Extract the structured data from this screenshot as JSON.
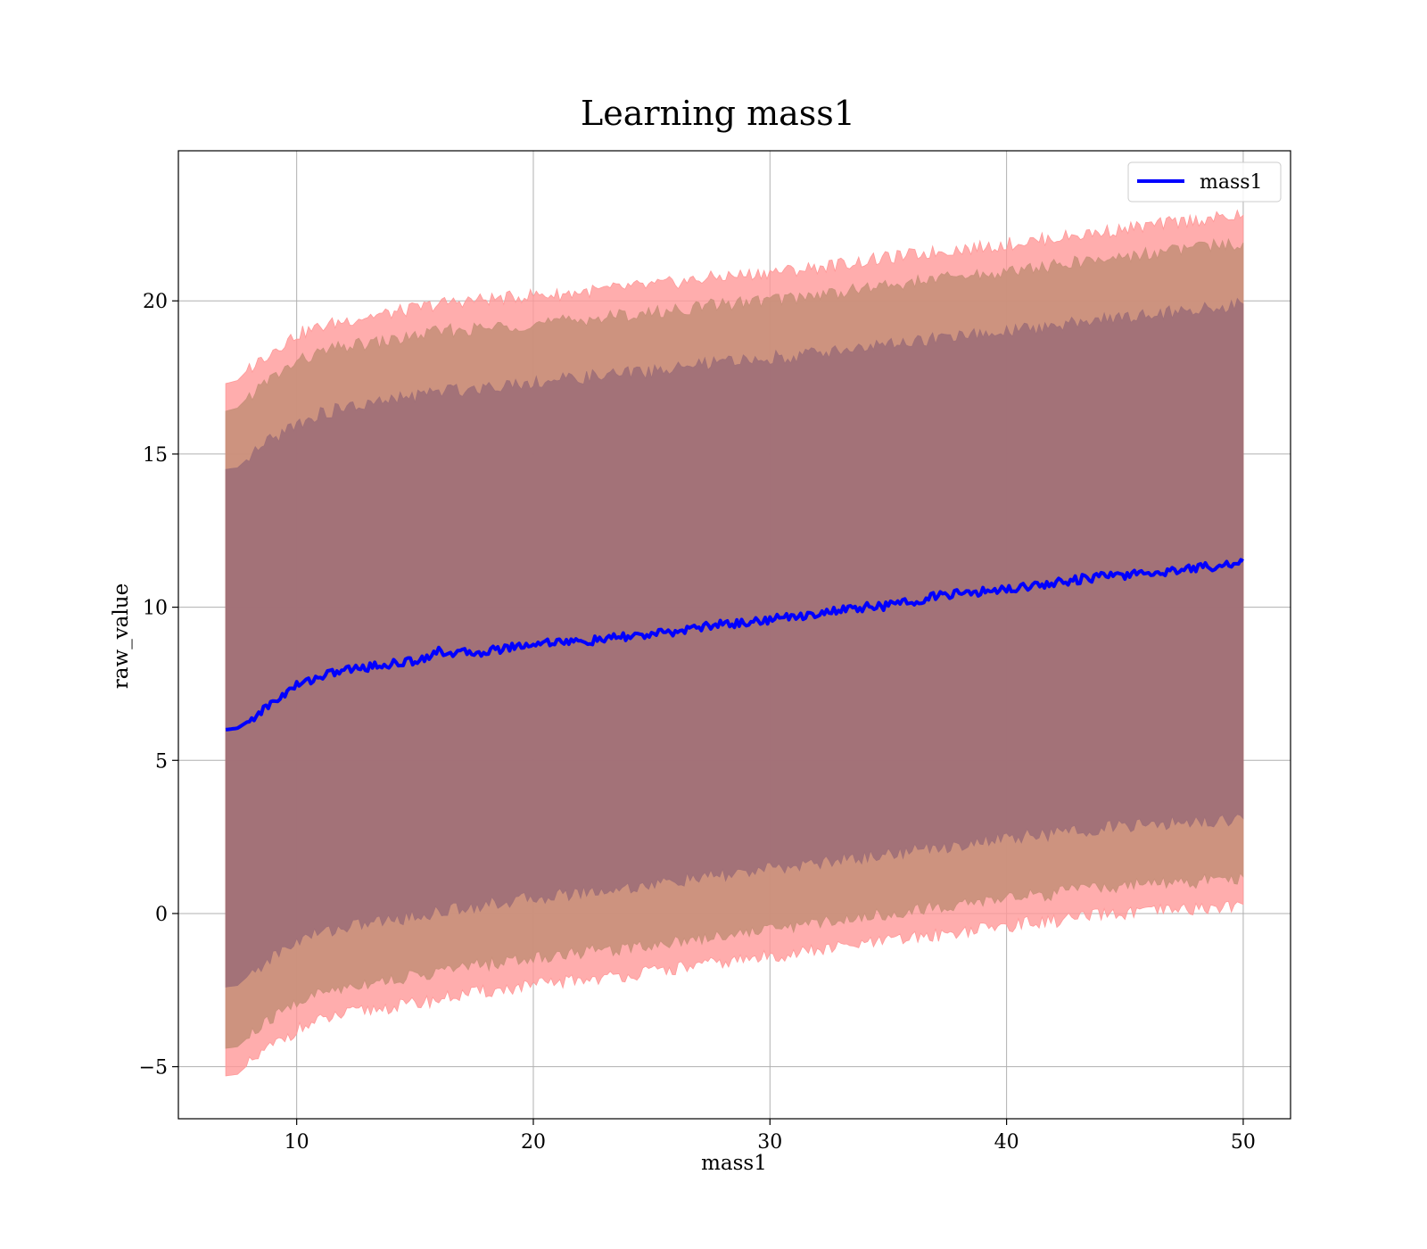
{
  "chart_data": {
    "type": "line",
    "title": "Learning mass1",
    "xlabel": "mass1",
    "ylabel": "raw_value",
    "xlim": [
      5,
      52
    ],
    "ylim": [
      -6.7,
      24.9
    ],
    "xticks": [
      10,
      20,
      30,
      40,
      50
    ],
    "xtick_labels": [
      "10",
      "20",
      "30",
      "40",
      "50"
    ],
    "yticks": [
      -5,
      0,
      5,
      10,
      15,
      20
    ],
    "ytick_labels": [
      "−5",
      "0",
      "5",
      "10",
      "15",
      "20"
    ],
    "grid": true,
    "legend": {
      "position": "top-right",
      "entries": [
        "mass1"
      ]
    },
    "colors": {
      "line": "#0000ff",
      "outer_band": "#ff9999",
      "middle_band": "#c8907a",
      "inner_band": "#a07078",
      "grid": "#b0b0b0"
    },
    "series": [
      {
        "name": "mass1",
        "x": [
          7,
          7.5,
          8,
          9,
          10,
          11,
          12,
          13,
          14,
          15,
          16,
          17,
          18,
          19,
          20,
          21,
          22,
          23,
          24,
          25,
          26,
          27,
          28,
          29,
          30,
          31,
          32,
          33,
          34,
          35,
          36,
          37,
          38,
          39,
          40,
          41,
          42,
          43,
          44,
          45,
          46,
          47,
          48,
          49,
          50
        ],
        "y": [
          6.0,
          6.05,
          6.3,
          6.9,
          7.45,
          7.75,
          7.95,
          8.05,
          8.15,
          8.25,
          8.55,
          8.5,
          8.55,
          8.7,
          8.8,
          8.9,
          8.85,
          8.95,
          9.05,
          9.1,
          9.2,
          9.35,
          9.45,
          9.5,
          9.6,
          9.7,
          9.8,
          9.9,
          10.0,
          10.05,
          10.2,
          10.35,
          10.45,
          10.5,
          10.6,
          10.7,
          10.8,
          10.9,
          11.0,
          11.05,
          11.1,
          11.2,
          11.3,
          11.35,
          11.5
        ]
      }
    ],
    "bands": [
      {
        "level": "outer",
        "x": [
          7,
          7.5,
          8,
          9,
          10,
          11,
          12,
          13,
          14,
          15,
          16,
          17,
          18,
          19,
          20,
          21,
          22,
          23,
          24,
          25,
          26,
          27,
          28,
          29,
          30,
          31,
          32,
          33,
          34,
          35,
          36,
          37,
          38,
          39,
          40,
          41,
          42,
          43,
          44,
          45,
          46,
          47,
          48,
          49,
          50
        ],
        "upper": [
          17.3,
          17.4,
          17.8,
          18.4,
          18.9,
          19.15,
          19.35,
          19.5,
          19.6,
          19.75,
          19.9,
          20.0,
          20.05,
          20.1,
          20.2,
          20.2,
          20.3,
          20.35,
          20.45,
          20.5,
          20.6,
          20.7,
          20.8,
          20.85,
          20.95,
          21.0,
          21.1,
          21.2,
          21.3,
          21.4,
          21.5,
          21.6,
          21.7,
          21.75,
          21.85,
          21.95,
          22.05,
          22.15,
          22.25,
          22.35,
          22.45,
          22.55,
          22.65,
          22.7,
          22.8
        ],
        "lower": [
          -5.3,
          -5.25,
          -4.9,
          -4.3,
          -3.8,
          -3.5,
          -3.3,
          -3.15,
          -3.05,
          -2.95,
          -2.8,
          -2.65,
          -2.55,
          -2.45,
          -2.35,
          -2.25,
          -2.15,
          -2.1,
          -2.0,
          -1.9,
          -1.8,
          -1.7,
          -1.6,
          -1.5,
          -1.4,
          -1.3,
          -1.2,
          -1.1,
          -1.0,
          -0.9,
          -0.8,
          -0.7,
          -0.6,
          -0.5,
          -0.4,
          -0.3,
          -0.25,
          -0.15,
          -0.05,
          0.0,
          0.05,
          0.1,
          0.15,
          0.2,
          0.3
        ]
      },
      {
        "level": "middle",
        "x": [
          7,
          7.5,
          8,
          9,
          10,
          11,
          12,
          13,
          14,
          15,
          16,
          17,
          18,
          19,
          20,
          21,
          22,
          23,
          24,
          25,
          26,
          27,
          28,
          29,
          30,
          31,
          32,
          33,
          34,
          35,
          36,
          37,
          38,
          39,
          40,
          41,
          42,
          43,
          44,
          45,
          46,
          47,
          48,
          49,
          50
        ],
        "upper": [
          16.4,
          16.5,
          16.9,
          17.5,
          18.0,
          18.3,
          18.5,
          18.6,
          18.7,
          18.85,
          19.0,
          19.05,
          19.1,
          19.2,
          19.25,
          19.3,
          19.4,
          19.45,
          19.55,
          19.6,
          19.7,
          19.8,
          19.9,
          19.95,
          20.05,
          20.1,
          20.2,
          20.3,
          20.4,
          20.5,
          20.6,
          20.7,
          20.8,
          20.85,
          20.95,
          21.05,
          21.15,
          21.25,
          21.35,
          21.45,
          21.55,
          21.65,
          21.75,
          21.8,
          21.9
        ],
        "lower": [
          -4.4,
          -4.35,
          -4.0,
          -3.4,
          -2.9,
          -2.6,
          -2.4,
          -2.25,
          -2.15,
          -2.05,
          -1.9,
          -1.75,
          -1.65,
          -1.55,
          -1.45,
          -1.35,
          -1.25,
          -1.2,
          -1.1,
          -1.0,
          -0.9,
          -0.8,
          -0.7,
          -0.6,
          -0.5,
          -0.4,
          -0.3,
          -0.2,
          -0.1,
          0.0,
          0.1,
          0.2,
          0.3,
          0.4,
          0.5,
          0.6,
          0.65,
          0.75,
          0.85,
          0.9,
          0.95,
          1.0,
          1.05,
          1.1,
          1.2
        ]
      },
      {
        "level": "inner",
        "x": [
          7,
          7.5,
          8,
          9,
          10,
          11,
          12,
          13,
          14,
          15,
          16,
          17,
          18,
          19,
          20,
          21,
          22,
          23,
          24,
          25,
          26,
          27,
          28,
          29,
          30,
          31,
          32,
          33,
          34,
          35,
          36,
          37,
          38,
          39,
          40,
          41,
          42,
          43,
          44,
          45,
          46,
          47,
          48,
          49,
          50
        ],
        "upper": [
          14.5,
          14.55,
          14.9,
          15.5,
          16.0,
          16.3,
          16.5,
          16.6,
          16.75,
          16.9,
          17.05,
          17.1,
          17.2,
          17.3,
          17.35,
          17.4,
          17.5,
          17.55,
          17.65,
          17.7,
          17.8,
          17.9,
          18.0,
          18.05,
          18.15,
          18.2,
          18.3,
          18.4,
          18.5,
          18.55,
          18.65,
          18.75,
          18.85,
          18.9,
          19.0,
          19.1,
          19.2,
          19.3,
          19.4,
          19.5,
          19.55,
          19.65,
          19.75,
          19.8,
          19.9
        ],
        "lower": [
          -2.4,
          -2.35,
          -2.0,
          -1.4,
          -0.9,
          -0.6,
          -0.45,
          -0.3,
          -0.2,
          -0.1,
          0.05,
          0.2,
          0.3,
          0.4,
          0.5,
          0.6,
          0.7,
          0.75,
          0.85,
          0.95,
          1.05,
          1.15,
          1.25,
          1.35,
          1.45,
          1.55,
          1.65,
          1.75,
          1.85,
          1.95,
          2.05,
          2.15,
          2.25,
          2.35,
          2.45,
          2.55,
          2.6,
          2.7,
          2.8,
          2.85,
          2.9,
          2.95,
          3.0,
          3.05,
          3.1
        ]
      }
    ]
  }
}
